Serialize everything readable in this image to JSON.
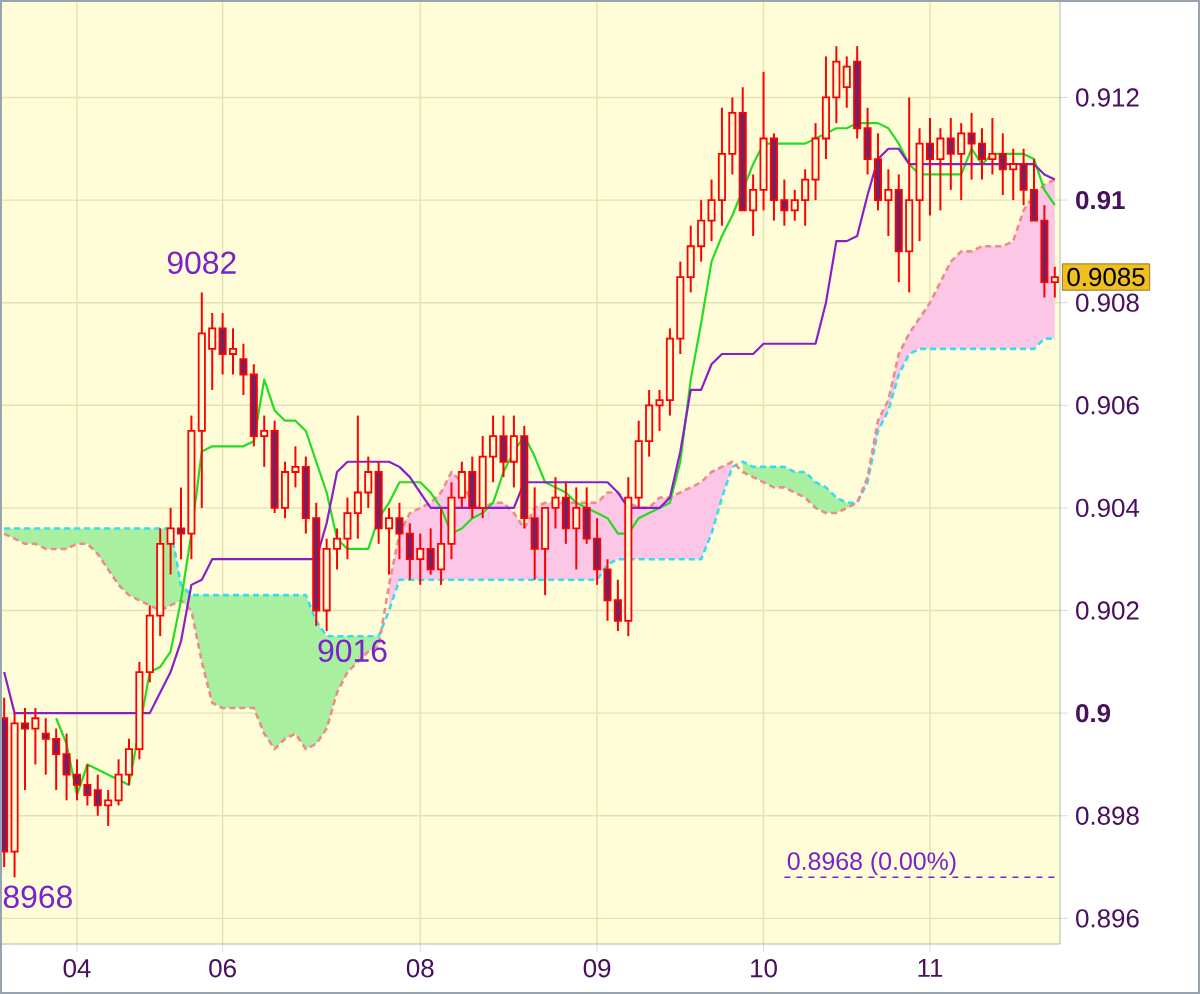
{
  "chart_data": {
    "type": "candlestick",
    "color": "#ff0000",
    "categories": [
      null,
      null,
      null,
      null,
      null,
      null,
      null,
      "04",
      null,
      null,
      null,
      null,
      null,
      null,
      null,
      null,
      null,
      null,
      null,
      null,
      null,
      "06",
      null,
      null,
      null,
      null,
      null,
      null,
      null,
      null,
      null,
      null,
      null,
      null,
      null,
      null,
      null,
      null,
      null,
      null,
      "08",
      null,
      null,
      null,
      null,
      null,
      null,
      null,
      null,
      null,
      null,
      null,
      null,
      null,
      null,
      null,
      null,
      "09",
      null,
      null,
      null,
      null,
      null,
      null,
      null,
      null,
      null,
      null,
      null,
      null,
      null,
      null,
      null,
      "10",
      null,
      null,
      null,
      null,
      null,
      null,
      null,
      null,
      null,
      null,
      null,
      null,
      null,
      null,
      null,
      "11",
      null,
      null,
      null,
      null,
      null,
      null,
      null,
      null,
      null,
      null,
      null,
      null
    ],
    "ohlc": [
      [
        0.8999,
        0.9003,
        0.897,
        0.8973
      ],
      [
        0.8973,
        0.9,
        0.8968,
        0.8998
      ],
      [
        0.8998,
        0.9001,
        0.8985,
        0.8997
      ],
      [
        0.8997,
        0.9001,
        0.899,
        0.8999
      ],
      [
        0.8996,
        0.8999,
        0.8988,
        0.8995
      ],
      [
        0.8995,
        0.8997,
        0.8985,
        0.8992
      ],
      [
        0.8992,
        0.8996,
        0.8983,
        0.8988
      ],
      [
        0.8988,
        0.8991,
        0.8983,
        0.8986
      ],
      [
        0.8986,
        0.899,
        0.8982,
        0.8984
      ],
      [
        0.8985,
        0.8988,
        0.898,
        0.8982
      ],
      [
        0.8982,
        0.8985,
        0.8978,
        0.8983
      ],
      [
        0.8983,
        0.8991,
        0.8982,
        0.8988
      ],
      [
        0.8988,
        0.8995,
        0.8986,
        0.8993
      ],
      [
        0.8993,
        0.901,
        0.8991,
        0.9008
      ],
      [
        0.9008,
        0.9021,
        0.9006,
        0.9019
      ],
      [
        0.9019,
        0.9036,
        0.9015,
        0.9033
      ],
      [
        0.9033,
        0.904,
        0.9027,
        0.9036
      ],
      [
        0.9036,
        0.9044,
        0.903,
        0.9035
      ],
      [
        0.9035,
        0.9058,
        0.903,
        0.9055
      ],
      [
        0.9055,
        0.9082,
        0.904,
        0.9074
      ],
      [
        0.9071,
        0.9078,
        0.9063,
        0.9075
      ],
      [
        0.9075,
        0.9078,
        0.9066,
        0.907
      ],
      [
        0.907,
        0.9075,
        0.9066,
        0.9071
      ],
      [
        0.9069,
        0.9072,
        0.9062,
        0.9066
      ],
      [
        0.9066,
        0.9068,
        0.9052,
        0.9054
      ],
      [
        0.9054,
        0.9058,
        0.9048,
        0.9055
      ],
      [
        0.9055,
        0.9057,
        0.9039,
        0.904
      ],
      [
        0.904,
        0.9049,
        0.9038,
        0.9047
      ],
      [
        0.9047,
        0.9052,
        0.9044,
        0.9048
      ],
      [
        0.9048,
        0.905,
        0.9035,
        0.9038
      ],
      [
        0.9038,
        0.9041,
        0.9017,
        0.902
      ],
      [
        0.902,
        0.9034,
        0.9016,
        0.9032
      ],
      [
        0.9032,
        0.9036,
        0.9028,
        0.9034
      ],
      [
        0.9034,
        0.9042,
        0.903,
        0.9039
      ],
      [
        0.9039,
        0.9058,
        0.9034,
        0.9043
      ],
      [
        0.9043,
        0.905,
        0.904,
        0.9047
      ],
      [
        0.9047,
        0.9049,
        0.9033,
        0.9036
      ],
      [
        0.9036,
        0.904,
        0.9027,
        0.9038
      ],
      [
        0.9038,
        0.9041,
        0.903,
        0.9035
      ],
      [
        0.9035,
        0.9037,
        0.9026,
        0.903
      ],
      [
        0.903,
        0.9035,
        0.9025,
        0.9032
      ],
      [
        0.9032,
        0.9036,
        0.9027,
        0.9028
      ],
      [
        0.9028,
        0.904,
        0.9025,
        0.9033
      ],
      [
        0.9033,
        0.9045,
        0.903,
        0.9042
      ],
      [
        0.9042,
        0.9049,
        0.904,
        0.9047
      ],
      [
        0.9047,
        0.905,
        0.9038,
        0.904
      ],
      [
        0.904,
        0.9054,
        0.9038,
        0.905
      ],
      [
        0.905,
        0.9058,
        0.9045,
        0.9054
      ],
      [
        0.9054,
        0.9058,
        0.9046,
        0.9049
      ],
      [
        0.9049,
        0.9058,
        0.9044,
        0.9054
      ],
      [
        0.9054,
        0.9056,
        0.9036,
        0.9038
      ],
      [
        0.9038,
        0.9044,
        0.9026,
        0.9032
      ],
      [
        0.9032,
        0.904,
        0.9023,
        0.904
      ],
      [
        0.904,
        0.9046,
        0.9036,
        0.9042
      ],
      [
        0.9042,
        0.9045,
        0.9033,
        0.9036
      ],
      [
        0.9036,
        0.9044,
        0.9028,
        0.904
      ],
      [
        0.904,
        0.9044,
        0.9033,
        0.9034
      ],
      [
        0.9034,
        0.9038,
        0.9025,
        0.9028
      ],
      [
        0.9028,
        0.903,
        0.9018,
        0.9022
      ],
      [
        0.9022,
        0.9026,
        0.9016,
        0.9018
      ],
      [
        0.9018,
        0.9046,
        0.9015,
        0.9042
      ],
      [
        0.9042,
        0.9057,
        0.904,
        0.9053
      ],
      [
        0.9053,
        0.9063,
        0.905,
        0.906
      ],
      [
        0.906,
        0.9063,
        0.9055,
        0.9061
      ],
      [
        0.9061,
        0.9075,
        0.9058,
        0.9073
      ],
      [
        0.9073,
        0.9088,
        0.907,
        0.9085
      ],
      [
        0.9085,
        0.9095,
        0.9082,
        0.9091
      ],
      [
        0.9091,
        0.91,
        0.9088,
        0.9096
      ],
      [
        0.9096,
        0.9104,
        0.9092,
        0.91
      ],
      [
        0.91,
        0.9118,
        0.9095,
        0.9109
      ],
      [
        0.9109,
        0.912,
        0.9105,
        0.9117
      ],
      [
        0.9117,
        0.9122,
        0.9098,
        0.9098
      ],
      [
        0.9098,
        0.9105,
        0.9093,
        0.9102
      ],
      [
        0.9102,
        0.9125,
        0.9098,
        0.9112
      ],
      [
        0.9112,
        0.9113,
        0.9096,
        0.91
      ],
      [
        0.91,
        0.9104,
        0.9095,
        0.9098
      ],
      [
        0.9098,
        0.9102,
        0.9096,
        0.91
      ],
      [
        0.91,
        0.9106,
        0.9095,
        0.9104
      ],
      [
        0.9104,
        0.9115,
        0.91,
        0.9112
      ],
      [
        0.9112,
        0.9128,
        0.9108,
        0.912
      ],
      [
        0.912,
        0.913,
        0.9115,
        0.9127
      ],
      [
        0.9122,
        0.9128,
        0.9118,
        0.9126
      ],
      [
        0.9127,
        0.913,
        0.9112,
        0.9114
      ],
      [
        0.9114,
        0.9118,
        0.9105,
        0.9108
      ],
      [
        0.9108,
        0.9113,
        0.9098,
        0.91
      ],
      [
        0.91,
        0.9106,
        0.9093,
        0.9102
      ],
      [
        0.9102,
        0.9105,
        0.9084,
        0.909
      ],
      [
        0.909,
        0.912,
        0.9082,
        0.91
      ],
      [
        0.91,
        0.9114,
        0.9092,
        0.9111
      ],
      [
        0.9111,
        0.9116,
        0.9097,
        0.9108
      ],
      [
        0.9108,
        0.9114,
        0.9098,
        0.9112
      ],
      [
        0.9112,
        0.9116,
        0.9102,
        0.9109
      ],
      [
        0.9109,
        0.9115,
        0.91,
        0.9113
      ],
      [
        0.9113,
        0.9117,
        0.9104,
        0.9111
      ],
      [
        0.9111,
        0.9114,
        0.9104,
        0.9108
      ],
      [
        0.9108,
        0.9116,
        0.9105,
        0.9109
      ],
      [
        0.9109,
        0.9113,
        0.9101,
        0.9106
      ],
      [
        0.9106,
        0.911,
        0.91,
        0.9107
      ],
      [
        0.9107,
        0.911,
        0.9099,
        0.9102
      ],
      [
        0.9102,
        0.9108,
        0.9096,
        0.9096
      ],
      [
        0.9096,
        0.9099,
        0.9081,
        0.9084
      ],
      [
        0.9084,
        0.9087,
        0.9081,
        0.9085
      ]
    ],
    "series": [
      {
        "type": "line",
        "color": "#33dfee",
        "line_style": "dashed",
        "values": [
          0.9036,
          0.9036,
          0.9036,
          0.9036,
          0.9036,
          0.9036,
          0.9036,
          0.9036,
          0.9036,
          0.9036,
          0.9036,
          0.9036,
          0.9036,
          0.9036,
          0.9036,
          0.9036,
          0.9036,
          0.9025,
          0.9023,
          0.9023,
          0.9023,
          0.9023,
          0.9023,
          0.9023,
          0.9023,
          0.9023,
          0.9023,
          0.9023,
          0.9023,
          0.9023,
          0.9018,
          0.9015,
          0.9015,
          0.9015,
          0.9015,
          0.9015,
          0.9015,
          0.902,
          0.9026,
          0.9026,
          0.9026,
          0.9026,
          0.9026,
          0.9026,
          0.9026,
          0.9026,
          0.9026,
          0.9026,
          0.9026,
          0.9026,
          0.9026,
          0.9026,
          0.9026,
          0.9026,
          0.9026,
          0.9026,
          0.9026,
          0.9026,
          0.9029,
          0.903,
          0.903,
          0.903,
          0.903,
          0.903,
          0.903,
          0.903,
          0.903,
          0.903,
          0.9035,
          0.9042,
          0.9048,
          0.9049,
          0.9048,
          0.9048,
          0.9048,
          0.9048,
          0.9047,
          0.9047,
          0.9045,
          0.9044,
          0.9042,
          0.9041,
          0.9041,
          0.9045,
          0.9055,
          0.9059,
          0.9066,
          0.907,
          0.9071,
          0.9071,
          0.9071,
          0.9071,
          0.9071,
          0.9071,
          0.9071,
          0.9071,
          0.9071,
          0.9071,
          0.9071,
          0.9071,
          0.9073,
          0.9073
        ],
        "upper": [
          0.9036,
          0.9036,
          0.9036,
          0.9036,
          0.9036,
          0.9036,
          0.9036,
          0.9036,
          0.9036,
          0.9036,
          0.9036,
          0.9036,
          0.9036,
          0.9036,
          0.9036,
          0.9036,
          0.9036,
          0.9025,
          0.9023,
          0.9023,
          0.9023,
          0.9023,
          0.9023,
          0.9023,
          0.9023,
          0.9023,
          0.9023,
          0.9023,
          0.9023,
          0.9023,
          0.9018,
          0.9015,
          0.9015,
          0.9015,
          0.9015,
          0.9015,
          0.9015,
          null,
          null,
          null,
          null,
          null,
          null,
          null,
          null,
          null,
          null,
          null,
          null,
          null,
          null,
          null,
          null,
          null,
          null,
          null,
          null,
          null,
          null,
          null,
          null,
          null,
          null,
          null,
          null,
          null,
          null,
          null,
          null,
          null,
          null,
          0.9049,
          0.9048,
          0.9048,
          0.9048,
          0.9048,
          0.9047,
          0.9047,
          0.9045,
          0.9044,
          0.9042,
          0.9041,
          0.9041,
          null,
          null,
          null,
          null,
          null,
          null,
          null,
          null,
          null,
          null,
          null,
          null,
          null,
          null,
          null,
          null,
          null,
          null,
          null
        ],
        "lower": [
          0.9035,
          0.9034,
          0.9033,
          0.9033,
          0.9032,
          0.9032,
          0.9032,
          0.9033,
          0.9033,
          0.9031,
          0.9028,
          0.9025,
          0.9023,
          0.9022,
          0.9021,
          0.902,
          0.9021,
          0.9022,
          0.902,
          0.901,
          0.9002,
          0.9001,
          0.9001,
          0.9001,
          0.9001,
          0.8996,
          0.8993,
          0.8995,
          0.8996,
          0.8993,
          0.8994,
          0.8997,
          0.9004,
          0.9008,
          0.901,
          0.9012,
          0.9013,
          null,
          null,
          null,
          null,
          null,
          null,
          null,
          null,
          null,
          null,
          null,
          null,
          null,
          null,
          null,
          null,
          null,
          null,
          null,
          null,
          null,
          null,
          null,
          null,
          null,
          null,
          null,
          null,
          null,
          null,
          null,
          null,
          null,
          null,
          0.9047,
          0.9046,
          0.9045,
          0.9044,
          0.9044,
          0.9043,
          0.9042,
          0.904,
          0.9039,
          0.9039,
          0.904,
          0.9041,
          null,
          null,
          null,
          null,
          null,
          null,
          null,
          null,
          null,
          null,
          null,
          null,
          null,
          null,
          null,
          null,
          null,
          null,
          null
        ]
      },
      {
        "type": "line",
        "color": "#f08a8a",
        "line_style": "dashed",
        "values": [
          0.9035,
          0.9034,
          0.9033,
          0.9033,
          0.9032,
          0.9032,
          0.9032,
          0.9033,
          0.9033,
          0.9031,
          0.9028,
          0.9025,
          0.9023,
          0.9022,
          0.9021,
          0.902,
          0.9021,
          0.9022,
          0.902,
          0.901,
          0.9002,
          0.9001,
          0.9001,
          0.9001,
          0.9001,
          0.8996,
          0.8993,
          0.8995,
          0.8996,
          0.8993,
          0.8994,
          0.8997,
          0.9004,
          0.9008,
          0.901,
          0.9012,
          0.9013,
          0.9025,
          0.9035,
          0.9039,
          0.904,
          0.9041,
          0.9043,
          0.9047,
          0.9045,
          0.9041,
          0.904,
          0.9041,
          0.9041,
          0.9039,
          0.9036,
          0.904,
          0.9041,
          0.9041,
          0.9041,
          0.9041,
          0.9041,
          0.9041,
          0.9043,
          0.9043,
          0.9041,
          0.904,
          0.904,
          0.9042,
          0.9042,
          0.9043,
          0.9044,
          0.9045,
          0.9047,
          0.9048,
          0.9049,
          0.9047,
          0.9046,
          0.9045,
          0.9044,
          0.9044,
          0.9043,
          0.9042,
          0.904,
          0.9039,
          0.9039,
          0.904,
          0.9041,
          0.9046,
          0.9057,
          0.9061,
          0.907,
          0.9074,
          0.9077,
          0.908,
          0.9084,
          0.9088,
          0.909,
          0.909,
          0.9091,
          0.9091,
          0.9091,
          0.9092,
          0.9098,
          0.9101,
          0.9103,
          0.9104
        ],
        "upper": [
          null,
          null,
          null,
          null,
          null,
          null,
          null,
          null,
          null,
          null,
          null,
          null,
          null,
          null,
          null,
          null,
          null,
          null,
          null,
          null,
          null,
          null,
          null,
          null,
          null,
          null,
          null,
          null,
          null,
          null,
          null,
          null,
          null,
          null,
          null,
          null,
          null,
          0.9025,
          0.9035,
          0.9039,
          0.904,
          0.9041,
          0.9043,
          0.9047,
          0.9045,
          0.9041,
          0.904,
          0.9041,
          0.9041,
          0.9039,
          0.9036,
          0.904,
          0.9041,
          0.9041,
          0.9041,
          0.9041,
          0.9041,
          0.9041,
          0.9043,
          0.9043,
          0.9041,
          0.904,
          0.904,
          0.9042,
          0.9042,
          0.9043,
          0.9044,
          0.9045,
          0.9047,
          0.9048,
          0.9049,
          null,
          null,
          null,
          null,
          null,
          null,
          null,
          null,
          null,
          null,
          null,
          0.9041,
          0.9046,
          0.9057,
          0.9061,
          0.907,
          0.9074,
          0.9077,
          0.908,
          0.9084,
          0.9088,
          0.909,
          0.909,
          0.9091,
          0.9091,
          0.9091,
          0.9092,
          0.9098,
          0.9101,
          0.9103,
          0.9104
        ],
        "lower": [
          null,
          null,
          null,
          null,
          null,
          null,
          null,
          null,
          null,
          null,
          null,
          null,
          null,
          null,
          null,
          null,
          null,
          null,
          null,
          null,
          null,
          null,
          null,
          null,
          null,
          null,
          null,
          null,
          null,
          null,
          null,
          null,
          null,
          null,
          null,
          null,
          null,
          0.902,
          0.9026,
          0.9026,
          0.9026,
          0.9026,
          0.9026,
          0.9026,
          0.9026,
          0.9026,
          0.9026,
          0.9026,
          0.9026,
          0.9026,
          0.9026,
          0.9026,
          0.9026,
          0.9026,
          0.9026,
          0.9026,
          0.9026,
          0.9026,
          0.9029,
          0.903,
          0.903,
          0.903,
          0.903,
          0.903,
          0.903,
          0.903,
          0.903,
          0.903,
          0.9035,
          0.9042,
          0.9048,
          null,
          null,
          null,
          null,
          null,
          null,
          null,
          null,
          null,
          null,
          null,
          0.9041,
          0.9045,
          0.9055,
          0.9059,
          0.9066,
          0.907,
          0.9071,
          0.9071,
          0.9071,
          0.9071,
          0.9071,
          0.9071,
          0.9071,
          0.9071,
          0.9071,
          0.9071,
          0.9071,
          0.9071,
          0.9073,
          0.9073
        ]
      },
      {
        "type": "line",
        "color": "#22dd22",
        "values": [
          null,
          null,
          null,
          null,
          null,
          0.8999,
          0.8994,
          0.8984,
          0.899,
          0.8989,
          0.8988,
          0.8987,
          0.8986,
          null,
          0.9008,
          0.9009,
          0.9012,
          0.9022,
          0.9035,
          0.9051,
          0.9052,
          0.9052,
          0.9052,
          0.9052,
          0.9053,
          0.9065,
          0.9059,
          0.9057,
          0.9057,
          0.9055,
          0.9049,
          0.9043,
          0.9034,
          0.9032,
          0.9032,
          0.9032,
          0.9038,
          0.9041,
          0.9045,
          0.9045,
          0.9045,
          0.9043,
          0.904,
          0.9035,
          0.9036,
          0.9038,
          0.9039,
          0.9041,
          0.9047,
          0.9051,
          0.9054,
          0.905,
          0.9045,
          0.9044,
          0.9043,
          0.9041,
          0.904,
          0.9039,
          0.9038,
          0.9035,
          0.9035,
          0.9038,
          0.9039,
          0.904,
          0.9041,
          0.9049,
          0.9065,
          0.9076,
          0.9088,
          0.9093,
          0.9097,
          null,
          0.9107,
          0.9111,
          0.9111,
          0.9111,
          0.9111,
          0.9111,
          0.9112,
          0.9113,
          0.9114,
          0.9114,
          0.9115,
          0.9115,
          0.9115,
          0.9114,
          0.9111,
          0.9107,
          0.9105,
          0.9105,
          0.9105,
          0.9105,
          0.9105,
          0.911,
          0.9107,
          0.9109,
          0.9109,
          0.9109,
          0.9109,
          0.9108,
          0.9102,
          0.9099
        ]
      },
      {
        "type": "line",
        "color": "#8a1fc8",
        "values": [
          0.9008,
          0.9,
          0.9,
          0.9,
          0.9,
          0.9,
          0.9,
          0.9,
          0.9,
          0.9,
          0.9,
          0.9,
          0.9,
          0.9,
          0.9,
          0.9004,
          0.9008,
          0.9014,
          0.9025,
          0.9026,
          0.903,
          0.903,
          0.903,
          0.903,
          0.903,
          0.903,
          0.903,
          0.903,
          0.903,
          0.903,
          0.903,
          0.9037,
          0.9047,
          0.9049,
          0.9049,
          0.9049,
          0.9049,
          0.9049,
          0.9048,
          0.9046,
          0.9043,
          0.904,
          0.904,
          0.904,
          0.904,
          0.904,
          0.904,
          0.904,
          0.904,
          0.904,
          0.9045,
          0.9045,
          0.9045,
          0.9045,
          0.9045,
          0.9045,
          0.9045,
          0.9045,
          0.9045,
          0.9043,
          0.904,
          0.904,
          0.904,
          0.904,
          0.9042,
          0.9051,
          0.9063,
          0.9063,
          0.9068,
          0.907,
          0.907,
          0.907,
          0.907,
          0.9072,
          0.9072,
          0.9072,
          0.9072,
          0.9072,
          0.9072,
          0.908,
          0.9092,
          0.9092,
          0.9093,
          0.9101,
          0.9108,
          0.911,
          0.911,
          0.9107,
          0.9107,
          0.9107,
          0.9107,
          0.9107,
          0.9107,
          0.9107,
          0.9107,
          0.9107,
          0.9107,
          0.9107,
          0.9107,
          0.9107,
          0.9105,
          0.9104
        ]
      }
    ],
    "ylim": [
      0.8955,
      0.9139
    ],
    "yticks": [
      0.896,
      0.898,
      0.9,
      0.902,
      0.904,
      0.906,
      0.908,
      0.91,
      0.912
    ],
    "grid": true,
    "ref_lines": [
      {
        "axis": "y",
        "value": 0.8968,
        "label": "0.8968 (0.00%)",
        "color": "#7a22cc",
        "line_style": "dashed"
      }
    ],
    "annotations": [
      {
        "text": "9082",
        "y": 0.9082
      },
      {
        "text": "9016",
        "y": 0.9016
      },
      "8968",
      {
        "text": "0.9085",
        "y": 0.9085
      }
    ]
  }
}
